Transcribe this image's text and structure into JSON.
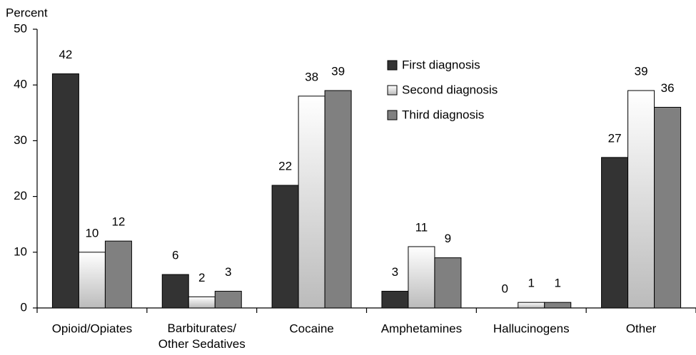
{
  "chart_data": {
    "type": "bar",
    "y_axis_label": "Percent",
    "categories": [
      "Opioid/Opiates",
      "Barbiturates/\nOther Sedatives",
      "Cocaine",
      "Amphetamines",
      "Hallucinogens",
      "Other"
    ],
    "series": [
      {
        "name": "First diagnosis",
        "color": "#333333",
        "values": [
          42,
          6,
          22,
          3,
          0,
          27
        ]
      },
      {
        "name": "Second diagnosis",
        "color": "#ffffff",
        "values": [
          10,
          2,
          38,
          11,
          1,
          39
        ]
      },
      {
        "name": "Third diagnosis",
        "color": "#808080",
        "values": [
          12,
          3,
          39,
          9,
          1,
          36
        ]
      }
    ],
    "ylim": [
      0,
      50
    ],
    "yticks": [
      0,
      10,
      20,
      30,
      40,
      50
    ],
    "grid": false,
    "legend": "top-right"
  }
}
